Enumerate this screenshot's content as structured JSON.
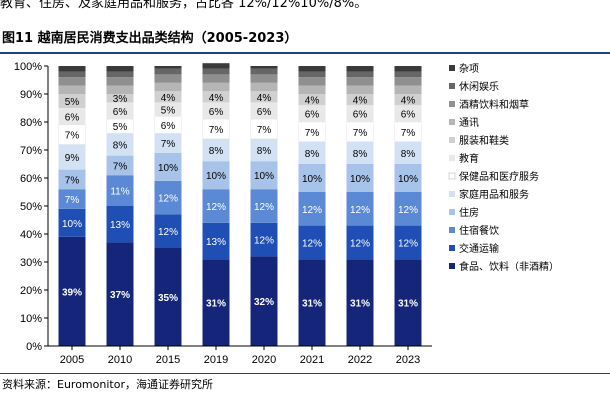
{
  "header": {
    "top_text": "教育、住房、及家庭用品和服务，占比各 12%/12%10%/8%。",
    "figure_title": "图11 越南居民消费支出品类结构（2005-2023）"
  },
  "footer": {
    "source": "资料来源：Euromonitor，海通证券研究所"
  },
  "colors": {
    "rule": "#1f3f8f"
  },
  "chart_data": {
    "type": "bar",
    "stacked": true,
    "categories": [
      "2005",
      "2010",
      "2015",
      "2019",
      "2020",
      "2021",
      "2022",
      "2023"
    ],
    "ylim": [
      0,
      100
    ],
    "yticks": [
      "0%",
      "10%",
      "20%",
      "30%",
      "40%",
      "50%",
      "60%",
      "70%",
      "80%",
      "90%",
      "100%"
    ],
    "legend_position": "right",
    "series": [
      {
        "name": "食品、饮料（非酒精）",
        "color": "#15257a",
        "label_color": "#ffffff",
        "labels": [
          "39%",
          "37%",
          "35%",
          "31%",
          "32%",
          "31%",
          "31%",
          "31%"
        ],
        "values": [
          39,
          37,
          35,
          31,
          32,
          31,
          31,
          31
        ]
      },
      {
        "name": "交通运输",
        "color": "#1f4fb4",
        "label_color": "#ffffff",
        "labels": [
          "10%",
          "13%",
          "12%",
          "13%",
          "12%",
          "12%",
          "12%",
          "12%"
        ],
        "values": [
          10,
          13,
          12,
          13,
          12,
          12,
          12,
          12
        ]
      },
      {
        "name": "住宿餐饮",
        "color": "#5b89d6",
        "label_color": "#ffffff",
        "labels": [
          "7%",
          "11%",
          "12%",
          "12%",
          "12%",
          "12%",
          "12%",
          "12%"
        ],
        "values": [
          7,
          11,
          12,
          12,
          12,
          12,
          12,
          12
        ]
      },
      {
        "name": "住房",
        "color": "#a8c3ea",
        "label_color": "#000000",
        "labels": [
          "7%",
          "7%",
          "10%",
          "10%",
          "10%",
          "10%",
          "10%",
          "10%"
        ],
        "values": [
          7,
          7,
          10,
          10,
          10,
          10,
          10,
          10
        ]
      },
      {
        "name": "家庭用品和服务",
        "color": "#d3e1f5",
        "label_color": "#000000",
        "labels": [
          "9%",
          "8%",
          "7%",
          "8%",
          "8%",
          "8%",
          "8%",
          "8%"
        ],
        "values": [
          9,
          8,
          7,
          8,
          8,
          8,
          8,
          8
        ]
      },
      {
        "name": "保健品和医疗服务",
        "color": "#ffffff",
        "label_color": "#000000",
        "labels": [
          "7%",
          "5%",
          "6%",
          "7%",
          "7%",
          "7%",
          "7%",
          "7%"
        ],
        "values": [
          7,
          5,
          6,
          7,
          7,
          7,
          7,
          7
        ]
      },
      {
        "name": "教育",
        "color": "#e8e8e8",
        "label_color": "#000000",
        "labels": [
          "6%",
          "6%",
          "5%",
          "6%",
          "6%",
          "6%",
          "6%",
          "6%"
        ],
        "values": [
          6,
          6,
          5,
          6,
          6,
          6,
          6,
          6
        ]
      },
      {
        "name": "服装和鞋类",
        "color": "#d0d0d0",
        "label_color": "#000000",
        "labels": [
          "5%",
          "3%",
          "4%",
          "4%",
          "4%",
          "4%",
          "4%",
          "4%"
        ],
        "values": [
          5,
          3,
          4,
          4,
          4,
          4,
          4,
          4
        ]
      },
      {
        "name": "通讯",
        "color": "#b5b5b5",
        "label_color": "#000000",
        "labels": [
          "",
          "",
          "",
          "",
          "",
          "",
          "",
          ""
        ],
        "values": [
          3,
          3,
          3,
          3,
          3,
          3,
          3,
          3
        ]
      },
      {
        "name": "酒精饮料和烟草",
        "color": "#8f8f8f",
        "label_color": "#000000",
        "labels": [
          "",
          "",
          "",
          "",
          "",
          "",
          "",
          ""
        ],
        "values": [
          3,
          3,
          3,
          3,
          3,
          3,
          3,
          3
        ]
      },
      {
        "name": "休闲娱乐",
        "color": "#666666",
        "label_color": "#000000",
        "labels": [
          "",
          "",
          "",
          "",
          "",
          "",
          "",
          ""
        ],
        "values": [
          2,
          2,
          2,
          2,
          2,
          2,
          2,
          2
        ]
      },
      {
        "name": "杂项",
        "color": "#3a3a3a",
        "label_color": "#000000",
        "labels": [
          "",
          "",
          "",
          "",
          "",
          "",
          "",
          ""
        ],
        "values": [
          2,
          2,
          1,
          2,
          1,
          2,
          2,
          2
        ]
      }
    ]
  }
}
